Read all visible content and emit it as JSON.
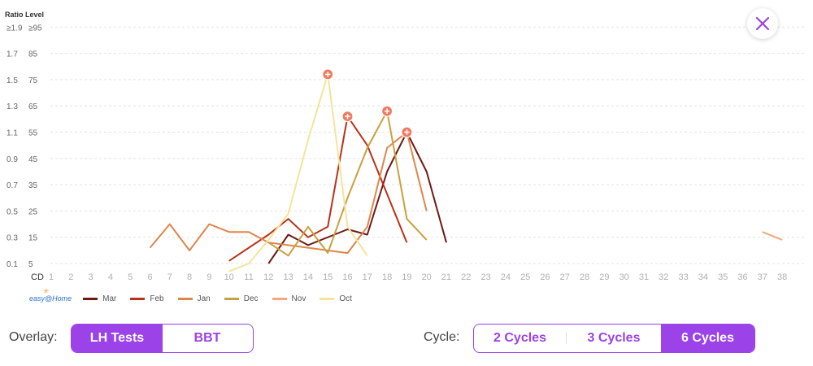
{
  "chart_data": {
    "type": "line",
    "ylabel": "Ratio Level",
    "xlabel": "CD",
    "y_ticks_ratio": [
      "≥1.9",
      "1.7",
      "1.5",
      "1.3",
      "1.1",
      "0.9",
      "0.7",
      "0.5",
      "0.3",
      "0.1"
    ],
    "y_ticks_level": [
      "≥95",
      "85",
      "75",
      "65",
      "55",
      "45",
      "35",
      "25",
      "15",
      "5"
    ],
    "ylim": [
      5,
      95
    ],
    "x": [
      1,
      2,
      3,
      4,
      5,
      6,
      7,
      8,
      9,
      10,
      11,
      12,
      13,
      14,
      15,
      16,
      17,
      18,
      19,
      20,
      21,
      22,
      23,
      24,
      25,
      26,
      27,
      28,
      29,
      30,
      31,
      32,
      33,
      34,
      35,
      36,
      37,
      38
    ],
    "grid": true,
    "series": [
      {
        "name": "Mar",
        "color": "#6e1a14",
        "points": [
          [
            12,
            5
          ],
          [
            13,
            16
          ],
          [
            14,
            12
          ],
          [
            16,
            18
          ],
          [
            17,
            16
          ],
          [
            18,
            40
          ],
          [
            19,
            55
          ],
          [
            20,
            40
          ],
          [
            21,
            13
          ]
        ]
      },
      {
        "name": "Feb",
        "color": "#b8321a",
        "points": [
          [
            10,
            6
          ],
          [
            12,
            16
          ],
          [
            13,
            22
          ],
          [
            14,
            15
          ],
          [
            15,
            19
          ],
          [
            16,
            61
          ],
          [
            17,
            50
          ],
          [
            19,
            13
          ]
        ],
        "peak": [
          16,
          61
        ]
      },
      {
        "name": "Jan",
        "color": "#e0854a",
        "points": [
          [
            6,
            11
          ],
          [
            7,
            20
          ],
          [
            8,
            10
          ],
          [
            9,
            20
          ],
          [
            10,
            17
          ],
          [
            11,
            17
          ],
          [
            12,
            13
          ],
          [
            13,
            12
          ],
          [
            14,
            11
          ],
          [
            15,
            10
          ],
          [
            16,
            9
          ],
          [
            17,
            19
          ],
          [
            18,
            49
          ],
          [
            19,
            55
          ],
          [
            20,
            25
          ]
        ],
        "peak": [
          19,
          55
        ]
      },
      {
        "name": "Dec",
        "color": "#c9a03e",
        "points": [
          [
            12,
            13
          ],
          [
            13,
            8
          ],
          [
            14,
            19
          ],
          [
            15,
            9
          ],
          [
            16,
            30
          ],
          [
            17,
            49
          ],
          [
            18,
            63
          ],
          [
            19,
            22
          ],
          [
            20,
            14
          ]
        ],
        "peak": [
          18,
          63
        ]
      },
      {
        "name": "Nov",
        "color": "#f2a87a",
        "points": [
          [
            37,
            17
          ],
          [
            38,
            14
          ]
        ]
      },
      {
        "name": "Oct",
        "color": "#f6e39a",
        "points": [
          [
            10,
            2
          ],
          [
            11,
            5
          ],
          [
            12,
            14
          ],
          [
            13,
            24
          ],
          [
            14,
            52
          ],
          [
            15,
            77
          ],
          [
            16,
            19
          ],
          [
            17,
            8
          ]
        ],
        "peak": [
          15,
          77
        ]
      }
    ]
  },
  "legend": {
    "logo_text": "easy@Home",
    "items": [
      {
        "label": "Mar",
        "color": "#6e1a14"
      },
      {
        "label": "Feb",
        "color": "#b8321a"
      },
      {
        "label": "Jan",
        "color": "#e0854a"
      },
      {
        "label": "Dec",
        "color": "#c9a03e"
      },
      {
        "label": "Nov",
        "color": "#f2a87a"
      },
      {
        "label": "Oct",
        "color": "#f6e39a"
      }
    ]
  },
  "controls": {
    "overlay_label": "Overlay:",
    "overlay_options": [
      "LH Tests",
      "BBT"
    ],
    "overlay_selected": "LH Tests",
    "cycle_label": "Cycle:",
    "cycle_options": [
      "2 Cycles",
      "3 Cycles",
      "6 Cycles"
    ],
    "cycle_selected": "6 Cycles"
  },
  "colors": {
    "accent": "#9b42e8",
    "peak_marker": "#f07a5e"
  },
  "icons": {
    "close": "close-icon"
  }
}
